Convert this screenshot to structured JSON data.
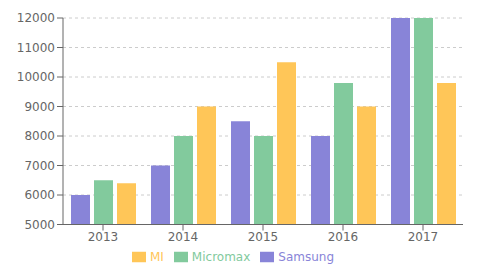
{
  "chart_data": {
    "type": "bar",
    "categories": [
      "2013",
      "2014",
      "2015",
      "2016",
      "2017"
    ],
    "series": [
      {
        "name": "Samsung",
        "color": "#8884d8",
        "values": [
          6000,
          7000,
          8500,
          8000,
          12000
        ]
      },
      {
        "name": "Micromax",
        "color": "#82ca9d",
        "values": [
          6500,
          8000,
          8000,
          9800,
          12000
        ]
      },
      {
        "name": "MI",
        "color": "#ffc658",
        "values": [
          6400,
          9000,
          10500,
          9000,
          9800
        ]
      }
    ],
    "ylim": [
      5000,
      12000
    ],
    "yticks": [
      5000,
      6000,
      7000,
      8000,
      9000,
      10000,
      11000,
      12000
    ],
    "grid": true,
    "legend": "bottom"
  }
}
